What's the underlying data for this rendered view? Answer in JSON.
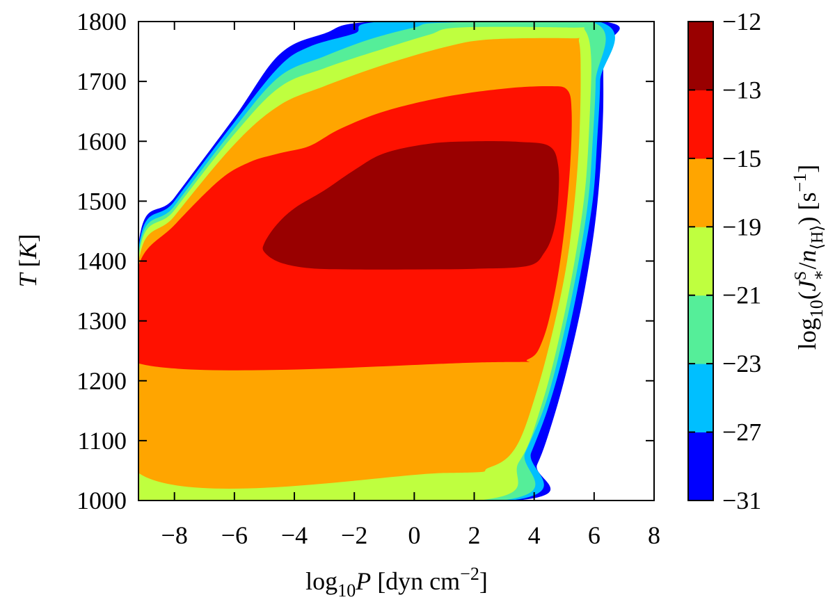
{
  "chart_data": {
    "type": "filled-contour",
    "title": "",
    "xlabel": {
      "prefix": "log",
      "sub": "10",
      "var": "P",
      "unit_open": " [dyn cm",
      "unit_exp": "−2",
      "unit_close": "]"
    },
    "ylabel": {
      "var": "T",
      "unit_open": " [",
      "unit_var": "K",
      "unit_close": "]"
    },
    "xlim": [
      -9.2,
      8
    ],
    "ylim": [
      1000,
      1800
    ],
    "x_ticks": [
      -8,
      -6,
      -4,
      -2,
      0,
      2,
      4,
      6,
      8
    ],
    "x_tick_labels": [
      "−8",
      "−6",
      "−4",
      "−2",
      "0",
      "2",
      "4",
      "6",
      "8"
    ],
    "y_ticks": [
      1000,
      1100,
      1200,
      1300,
      1400,
      1500,
      1600,
      1700,
      1800
    ],
    "y_tick_labels": [
      "1000",
      "1100",
      "1200",
      "1300",
      "1400",
      "1500",
      "1600",
      "1700",
      "1800"
    ],
    "grid": false,
    "colorbar": {
      "label": {
        "prefix": "log",
        "sub": "10",
        "open": "(",
        "var": "J",
        "var_sub": "∗",
        "var_sup": "S",
        "slash": "/",
        "den": "n",
        "den_sub": "⟨H⟩",
        "close": ")",
        "unit_open": " [s",
        "unit_exp": "−1",
        "unit_close": "]"
      },
      "levels": [
        -31,
        -27,
        -23,
        -21,
        -19,
        -15,
        -13,
        -12
      ],
      "level_labels": [
        "−31",
        "−27",
        "−23",
        "−21",
        "−19",
        "−15",
        "−13",
        "−12"
      ],
      "colors": [
        "#0000ff",
        "#00bfff",
        "#55ee99",
        "#bfff3f",
        "#ffa500",
        "#ff1100",
        "#990000"
      ]
    },
    "regions": [
      {
        "level": -31,
        "color": "#0000ff",
        "boundary": [
          [
            -9.2,
            1426
          ],
          [
            -8,
            1506
          ],
          [
            -6,
            1640
          ],
          [
            -4.5,
            1745
          ],
          [
            -3,
            1780
          ],
          [
            -1.2,
            1800
          ],
          [
            6.3,
            1800
          ],
          [
            6.3,
            1750
          ],
          [
            6.3,
            1650
          ],
          [
            6.2,
            1550
          ],
          [
            6.0,
            1450
          ],
          [
            5.6,
            1330
          ],
          [
            5.1,
            1220
          ],
          [
            4.6,
            1130
          ],
          [
            4.1,
            1060
          ],
          [
            3.4,
            1000
          ],
          [
            -9.2,
            1000
          ]
        ]
      },
      {
        "level": -27,
        "color": "#00bfff",
        "boundary": [
          [
            -9.2,
            1418
          ],
          [
            -8,
            1500
          ],
          [
            -6,
            1632
          ],
          [
            -4.5,
            1725
          ],
          [
            -3.5,
            1758
          ],
          [
            -2,
            1780
          ],
          [
            -1,
            1800
          ],
          [
            6.15,
            1800
          ],
          [
            6.2,
            1700
          ],
          [
            6.1,
            1600
          ],
          [
            5.95,
            1500
          ],
          [
            5.55,
            1380
          ],
          [
            5.05,
            1260
          ],
          [
            4.5,
            1160
          ],
          [
            3.9,
            1080
          ],
          [
            3.2,
            1000
          ],
          [
            -9.2,
            1000
          ]
        ]
      },
      {
        "level": -23,
        "color": "#55ee99",
        "boundary": [
          [
            -9.2,
            1410
          ],
          [
            -8,
            1492
          ],
          [
            -6,
            1622
          ],
          [
            -4.5,
            1708
          ],
          [
            -3,
            1742
          ],
          [
            -1.5,
            1770
          ],
          [
            0,
            1790
          ],
          [
            1,
            1798
          ],
          [
            6.0,
            1798
          ],
          [
            6.05,
            1700
          ],
          [
            5.95,
            1600
          ],
          [
            5.8,
            1500
          ],
          [
            5.45,
            1390
          ],
          [
            4.95,
            1270
          ],
          [
            4.4,
            1165
          ],
          [
            3.7,
            1080
          ],
          [
            2.9,
            1000
          ],
          [
            -9.2,
            1000
          ]
        ]
      },
      {
        "level": -21,
        "color": "#bfff3f",
        "boundary": [
          [
            -9.2,
            1403
          ],
          [
            -8,
            1485
          ],
          [
            -6,
            1612
          ],
          [
            -4.5,
            1690
          ],
          [
            -3,
            1722
          ],
          [
            -1,
            1755
          ],
          [
            0.5,
            1778
          ],
          [
            1.5,
            1790
          ],
          [
            5.2,
            1790
          ],
          [
            5.7,
            1785
          ],
          [
            5.9,
            1740
          ],
          [
            5.85,
            1640
          ],
          [
            5.7,
            1520
          ],
          [
            5.35,
            1400
          ],
          [
            4.85,
            1275
          ],
          [
            4.25,
            1160
          ],
          [
            3.5,
            1065
          ],
          [
            2.1,
            1000
          ],
          [
            -9.2,
            1000
          ]
        ]
      },
      {
        "level": -19,
        "color": "#ffa500",
        "boundary": [
          [
            -9.2,
            1395
          ],
          [
            -8,
            1475
          ],
          [
            -6,
            1595
          ],
          [
            -4.5,
            1660
          ],
          [
            -3,
            1692
          ],
          [
            -1,
            1728
          ],
          [
            1,
            1757
          ],
          [
            2.5,
            1770
          ],
          [
            5.2,
            1772
          ],
          [
            5.5,
            1765
          ],
          [
            5.55,
            1700
          ],
          [
            5.5,
            1600
          ],
          [
            5.35,
            1500
          ],
          [
            5.1,
            1400
          ],
          [
            4.7,
            1300
          ],
          [
            4.1,
            1185
          ],
          [
            3.4,
            1090
          ],
          [
            2.5,
            1055
          ],
          [
            1.0,
            1046
          ],
          [
            -9.2,
            1046
          ]
        ]
      },
      {
        "level": -15,
        "color": "#ff1100",
        "boundary": [
          [
            -9.2,
            1390
          ],
          [
            -8,
            1460
          ],
          [
            -6.5,
            1535
          ],
          [
            -5.5,
            1565
          ],
          [
            -4.5,
            1580
          ],
          [
            -3.5,
            1592
          ],
          [
            -2.5,
            1620
          ],
          [
            -1,
            1650
          ],
          [
            1,
            1674
          ],
          [
            3,
            1688
          ],
          [
            4.5,
            1692
          ],
          [
            5.1,
            1686
          ],
          [
            5.25,
            1650
          ],
          [
            5.2,
            1560
          ],
          [
            5.0,
            1450
          ],
          [
            4.7,
            1350
          ],
          [
            4.3,
            1270
          ],
          [
            3.8,
            1236
          ],
          [
            2.5,
            1231
          ],
          [
            -9.2,
            1229
          ]
        ]
      },
      {
        "level": -13,
        "color": "#990000",
        "boundary": [
          [
            -5.0,
            1430
          ],
          [
            -4.6,
            1460
          ],
          [
            -4,
            1488
          ],
          [
            -3,
            1518
          ],
          [
            -2,
            1552
          ],
          [
            -1,
            1580
          ],
          [
            0.5,
            1596
          ],
          [
            2,
            1600
          ],
          [
            3.5,
            1599
          ],
          [
            4.5,
            1592
          ],
          [
            4.8,
            1560
          ],
          [
            4.8,
            1500
          ],
          [
            4.65,
            1450
          ],
          [
            4.35,
            1415
          ],
          [
            3.8,
            1392
          ],
          [
            2,
            1387
          ],
          [
            0,
            1386
          ],
          [
            -2,
            1386
          ],
          [
            -3.5,
            1388
          ],
          [
            -4.5,
            1398
          ],
          [
            -5.0,
            1415
          ]
        ]
      }
    ]
  }
}
